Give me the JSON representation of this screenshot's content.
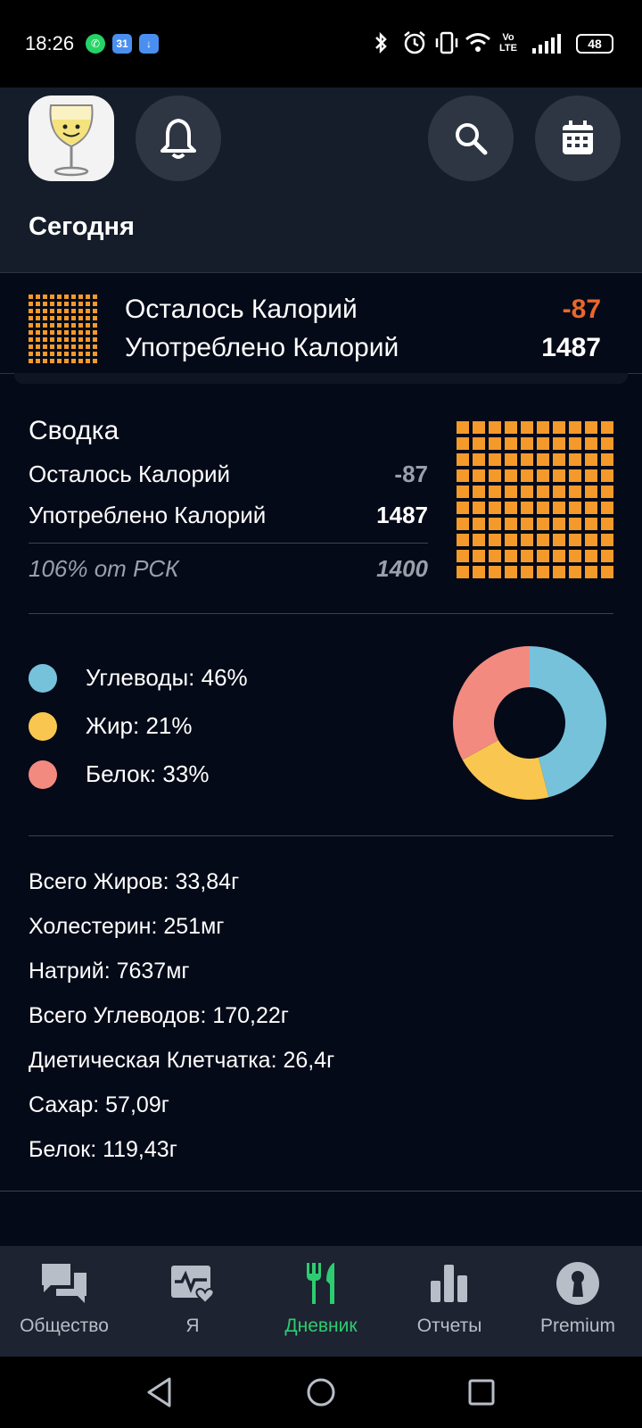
{
  "status_bar": {
    "time": "18:26",
    "calendar_badge": "31",
    "battery": "48",
    "volte": "Vo LTE"
  },
  "header": {
    "title": "Сегодня"
  },
  "top_summary": {
    "remaining_label": "Осталось Калорий",
    "remaining_value": "-87",
    "consumed_label": "Употреблено Калорий",
    "consumed_value": "1487"
  },
  "summary": {
    "title": "Сводка",
    "remaining_label": "Осталось Калорий",
    "remaining_value": "-87",
    "consumed_label": "Употреблено Калорий",
    "consumed_value": "1487",
    "rsk_label": "106% от РСК",
    "rsk_value": "1400"
  },
  "macros": {
    "items": [
      {
        "label": "Углеводы: 46%",
        "percent": 46,
        "color": "#76c2db"
      },
      {
        "label": "Жир: 21%",
        "percent": 21,
        "color": "#f9c74f"
      },
      {
        "label": "Белок: 33%",
        "percent": 33,
        "color": "#f38a80"
      }
    ]
  },
  "nutrients": [
    "Всего Жиров: 33,84г",
    "Холестерин: 251мг",
    "Натрий: 7637мг",
    "Всего Углеводов: 170,22г",
    "Диетическая Клетчатка: 26,4г",
    "Сахар: 57,09г",
    "Белок: 119,43г"
  ],
  "bottom_nav": {
    "items": [
      {
        "label": "Общество",
        "icon": "chat-bubbles-icon",
        "active": false
      },
      {
        "label": "Я",
        "icon": "health-monitor-icon",
        "active": false
      },
      {
        "label": "Дневник",
        "icon": "fork-knife-icon",
        "active": true
      },
      {
        "label": "Отчеты",
        "icon": "bar-chart-icon",
        "active": false
      },
      {
        "label": "Premium",
        "icon": "premium-keyhole-icon",
        "active": false
      }
    ]
  },
  "colors": {
    "accent_green": "#2ecc71",
    "orange_negative": "#e8672a",
    "grid_orange": "#f39a2b"
  }
}
